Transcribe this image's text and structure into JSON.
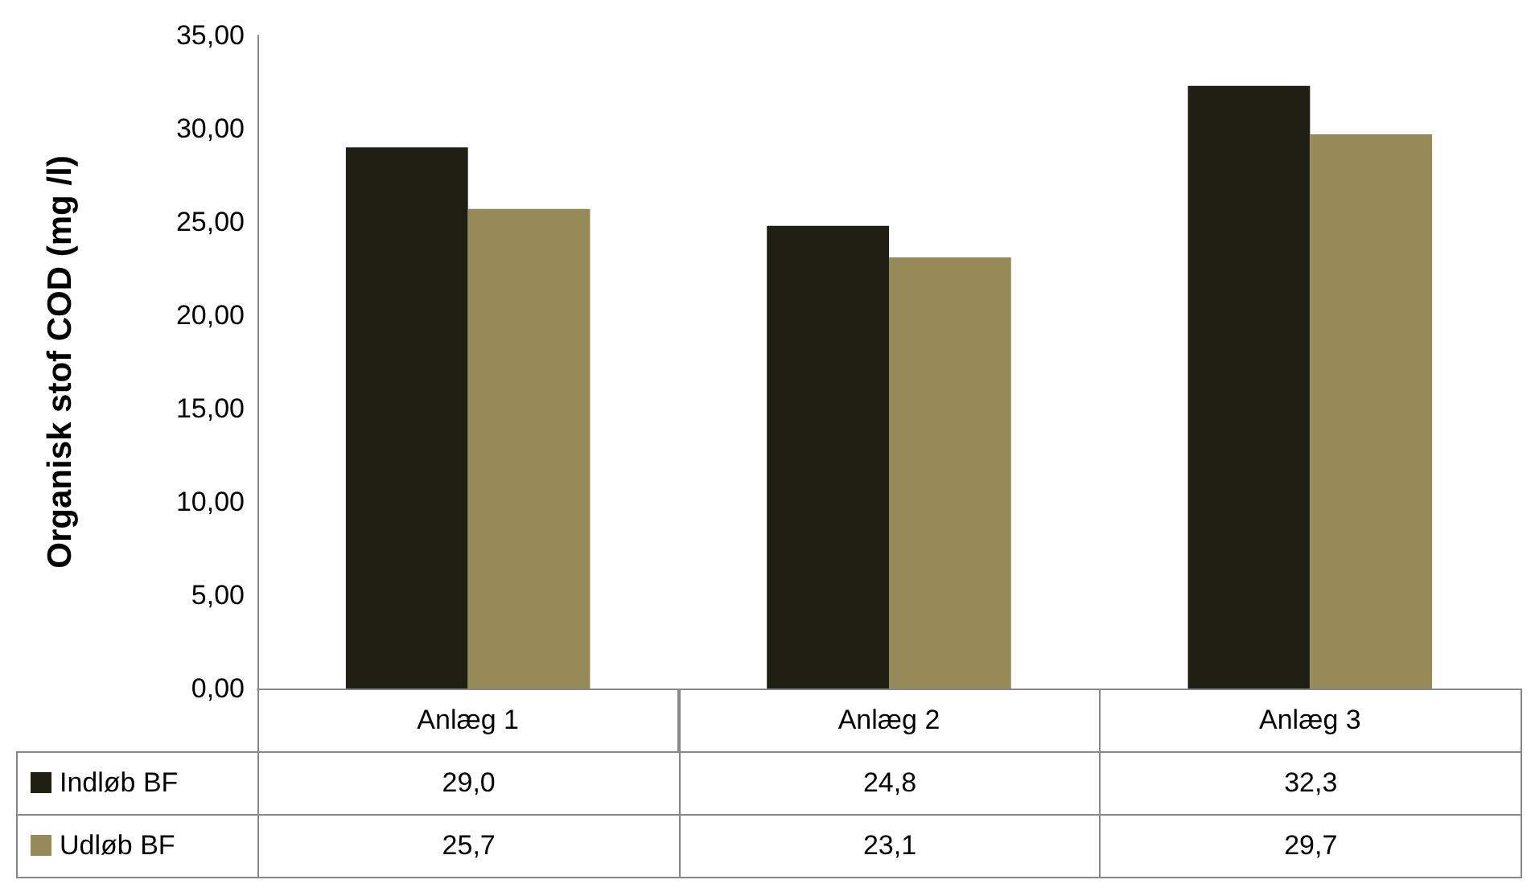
{
  "chart_data": {
    "type": "bar",
    "ylabel": "Organisk stof COD (mg /l)",
    "categories": [
      "Anlæg 1",
      "Anlæg 2",
      "Anlæg 3"
    ],
    "series": [
      {
        "name": "Indløb BF",
        "color": "#201f14",
        "values": [
          29.0,
          24.8,
          32.3
        ],
        "value_labels": [
          "29,0",
          "24,8",
          "32,3"
        ]
      },
      {
        "name": "Udløb BF",
        "color": "#968b58",
        "values": [
          25.7,
          23.1,
          29.7
        ],
        "value_labels": [
          "25,7",
          "23,1",
          "29,7"
        ]
      }
    ],
    "ylim": [
      0,
      35
    ],
    "yticks": [
      {
        "value": 0,
        "label": "0,00"
      },
      {
        "value": 5,
        "label": "5,00"
      },
      {
        "value": 10,
        "label": "10,00"
      },
      {
        "value": 15,
        "label": "15,00"
      },
      {
        "value": 20,
        "label": "20,00"
      },
      {
        "value": 25,
        "label": "25,00"
      },
      {
        "value": 30,
        "label": "30,00"
      },
      {
        "value": 35,
        "label": "35,00"
      }
    ],
    "grid": false,
    "legend": "bottom left"
  }
}
